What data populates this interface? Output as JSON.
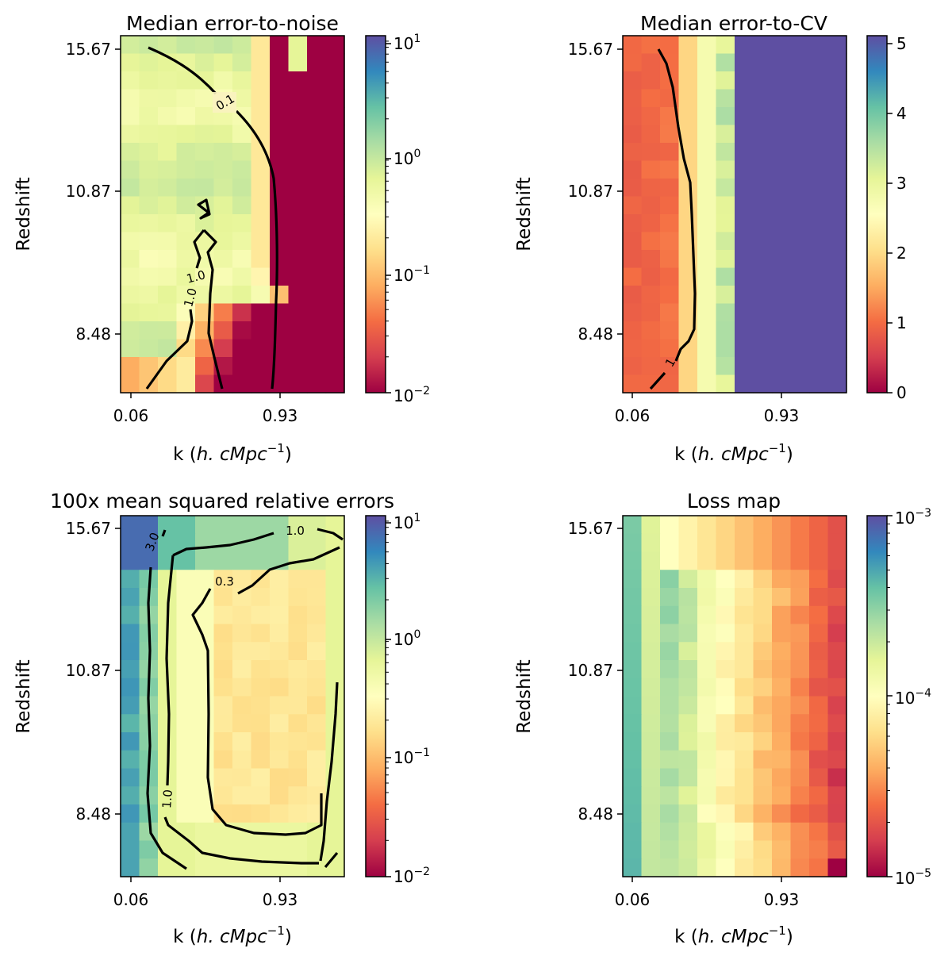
{
  "figure": {
    "ylabel": "Redshift",
    "ytick_labels": [
      "15.67",
      "10.87",
      "8.48"
    ],
    "xtick_labels": [
      "0.06",
      "0.93"
    ],
    "xlabel_plain": "k (",
    "xlabel_math": "h. cMpc",
    "xlabel_exp": "−1",
    "xlabel_close": ")"
  },
  "chart_data": [
    {
      "type": "heatmap",
      "title": "Median error-to-noise",
      "colorbar": {
        "scale": "log",
        "range": [
          0.01,
          10
        ],
        "ticks": [
          {
            "base": "10",
            "exp": "1"
          },
          {
            "base": "10",
            "exp": "0"
          },
          {
            "base": "10",
            "exp": "−1"
          },
          {
            "base": "10",
            "exp": "−2"
          }
        ]
      },
      "colormap": "Spectral",
      "grid": {
        "columns": 12,
        "rows": 20
      },
      "contours": [
        {
          "level": "0.1"
        },
        {
          "level": "1.0"
        },
        {
          "level": "1.0"
        }
      ]
    },
    {
      "type": "heatmap",
      "title": "Median error-to-CV",
      "colorbar": {
        "scale": "linear",
        "range": [
          0,
          5
        ],
        "ticks": [
          {
            "base": "5",
            "exp": ""
          },
          {
            "base": "4",
            "exp": ""
          },
          {
            "base": "3",
            "exp": ""
          },
          {
            "base": "2",
            "exp": ""
          },
          {
            "base": "1",
            "exp": ""
          },
          {
            "base": "0",
            "exp": ""
          }
        ]
      },
      "colormap": "Spectral",
      "grid": {
        "columns": 12,
        "rows": 20
      },
      "contours": [
        {
          "level": "1"
        }
      ]
    },
    {
      "type": "heatmap",
      "title": "100x mean squared relative errors",
      "colorbar": {
        "scale": "log",
        "range": [
          0.01,
          10
        ],
        "ticks": [
          {
            "base": "10",
            "exp": "1"
          },
          {
            "base": "10",
            "exp": "0"
          },
          {
            "base": "10",
            "exp": "−1"
          },
          {
            "base": "10",
            "exp": "−2"
          }
        ]
      },
      "colormap": "Spectral",
      "grid": {
        "columns": 12,
        "rows": 20
      },
      "contours": [
        {
          "level": "3.0"
        },
        {
          "level": "1.0"
        },
        {
          "level": "1.0"
        },
        {
          "level": "0.3"
        }
      ]
    },
    {
      "type": "heatmap",
      "title": "Loss map",
      "colorbar": {
        "scale": "log",
        "range": [
          1e-05,
          0.001
        ],
        "ticks": [
          {
            "base": "10",
            "exp": "−3"
          },
          {
            "base": "10",
            "exp": "−4"
          },
          {
            "base": "10",
            "exp": "−5"
          }
        ]
      },
      "colormap": "Spectral",
      "grid": {
        "columns": 12,
        "rows": 20
      },
      "contours": []
    }
  ]
}
